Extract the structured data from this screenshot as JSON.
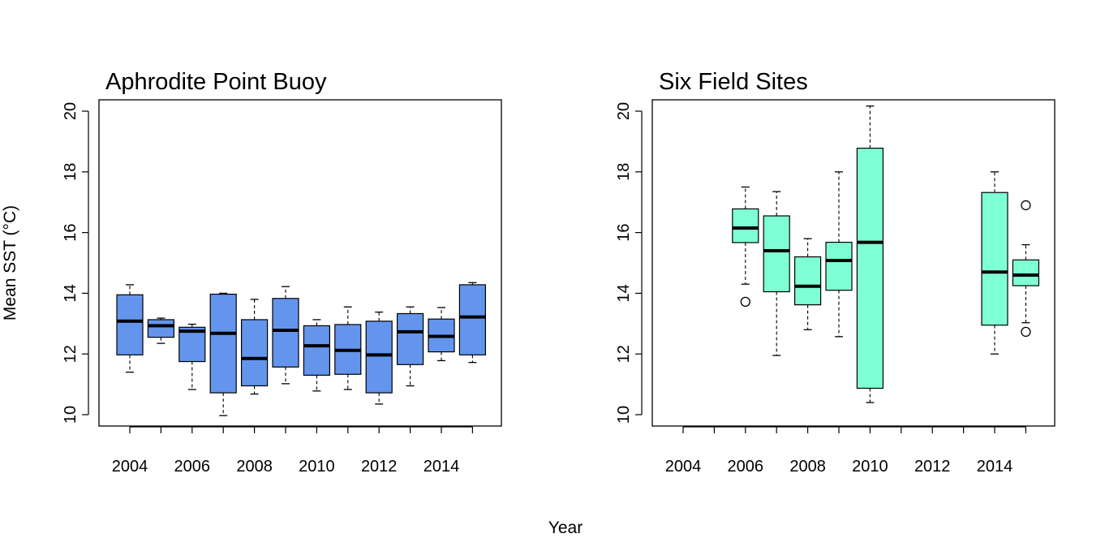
{
  "figure": {
    "xlabel": "Year",
    "ylabel": "Mean SST (°C)"
  },
  "chart_data": [
    {
      "type": "box",
      "title": "Aphrodite Point Buoy",
      "xlabel": "Year",
      "ylabel": "Mean SST (°C)",
      "ylim": [
        10,
        20
      ],
      "yticks": [
        10,
        12,
        14,
        16,
        18,
        20
      ],
      "categories": [
        2004,
        2005,
        2006,
        2007,
        2008,
        2009,
        2010,
        2011,
        2012,
        2013,
        2014,
        2015
      ],
      "xtick_labels": [
        "2004",
        "2006",
        "2008",
        "2010",
        "2012",
        "2014"
      ],
      "fill_color": "#6495ed",
      "boxes": [
        {
          "year": 2004,
          "min": 11.4,
          "q1": 11.97,
          "median": 13.08,
          "q3": 13.95,
          "max": 14.28,
          "outliers": []
        },
        {
          "year": 2005,
          "min": 12.35,
          "q1": 12.55,
          "median": 12.93,
          "q3": 13.13,
          "max": 13.18,
          "outliers": []
        },
        {
          "year": 2006,
          "min": 10.83,
          "q1": 11.75,
          "median": 12.75,
          "q3": 12.88,
          "max": 12.98,
          "outliers": []
        },
        {
          "year": 2007,
          "min": 9.97,
          "q1": 10.72,
          "median": 12.68,
          "q3": 13.97,
          "max": 14.0,
          "outliers": []
        },
        {
          "year": 2008,
          "min": 10.68,
          "q1": 10.95,
          "median": 11.85,
          "q3": 13.13,
          "max": 13.8,
          "outliers": []
        },
        {
          "year": 2009,
          "min": 11.02,
          "q1": 11.57,
          "median": 12.78,
          "q3": 13.83,
          "max": 14.22,
          "outliers": []
        },
        {
          "year": 2010,
          "min": 10.78,
          "q1": 11.3,
          "median": 12.27,
          "q3": 12.93,
          "max": 13.13,
          "outliers": []
        },
        {
          "year": 2011,
          "min": 10.83,
          "q1": 11.33,
          "median": 12.12,
          "q3": 12.97,
          "max": 13.55,
          "outliers": []
        },
        {
          "year": 2012,
          "min": 10.35,
          "q1": 10.72,
          "median": 11.97,
          "q3": 13.08,
          "max": 13.38,
          "outliers": []
        },
        {
          "year": 2013,
          "min": 10.95,
          "q1": 11.65,
          "median": 12.73,
          "q3": 13.33,
          "max": 13.55,
          "outliers": []
        },
        {
          "year": 2014,
          "min": 11.78,
          "q1": 12.07,
          "median": 12.58,
          "q3": 13.15,
          "max": 13.53,
          "outliers": []
        },
        {
          "year": 2015,
          "min": 11.72,
          "q1": 11.97,
          "median": 13.22,
          "q3": 14.28,
          "max": 14.35,
          "outliers": []
        }
      ]
    },
    {
      "type": "box",
      "title": "Six Field Sites",
      "xlabel": "Year",
      "ylabel": "",
      "ylim": [
        10,
        20
      ],
      "yticks": [
        10,
        12,
        14,
        16,
        18,
        20
      ],
      "categories": [
        2004,
        2005,
        2006,
        2007,
        2008,
        2009,
        2010,
        2011,
        2012,
        2013,
        2014,
        2015
      ],
      "xtick_labels": [
        "2004",
        "2006",
        "2008",
        "2010",
        "2012",
        "2014"
      ],
      "fill_color": "#7fffd4",
      "boxes": [
        {
          "year": 2006,
          "min": 14.3,
          "q1": 15.67,
          "median": 16.15,
          "q3": 16.78,
          "max": 17.5,
          "outliers": [
            13.72
          ]
        },
        {
          "year": 2007,
          "min": 11.95,
          "q1": 14.05,
          "median": 15.4,
          "q3": 16.55,
          "max": 17.35,
          "outliers": []
        },
        {
          "year": 2008,
          "min": 12.8,
          "q1": 13.62,
          "median": 14.23,
          "q3": 15.2,
          "max": 15.8,
          "outliers": []
        },
        {
          "year": 2009,
          "min": 12.57,
          "q1": 14.1,
          "median": 15.08,
          "q3": 15.68,
          "max": 18.0,
          "outliers": []
        },
        {
          "year": 2010,
          "min": 10.4,
          "q1": 10.87,
          "median": 15.68,
          "q3": 18.78,
          "max": 20.17,
          "outliers": []
        },
        {
          "year": 2014,
          "min": 12.0,
          "q1": 12.95,
          "median": 14.7,
          "q3": 17.32,
          "max": 18.0,
          "outliers": []
        },
        {
          "year": 2015,
          "min": 13.03,
          "q1": 14.25,
          "median": 14.6,
          "q3": 15.1,
          "max": 15.6,
          "outliers": [
            16.9,
            12.73
          ]
        }
      ]
    }
  ]
}
